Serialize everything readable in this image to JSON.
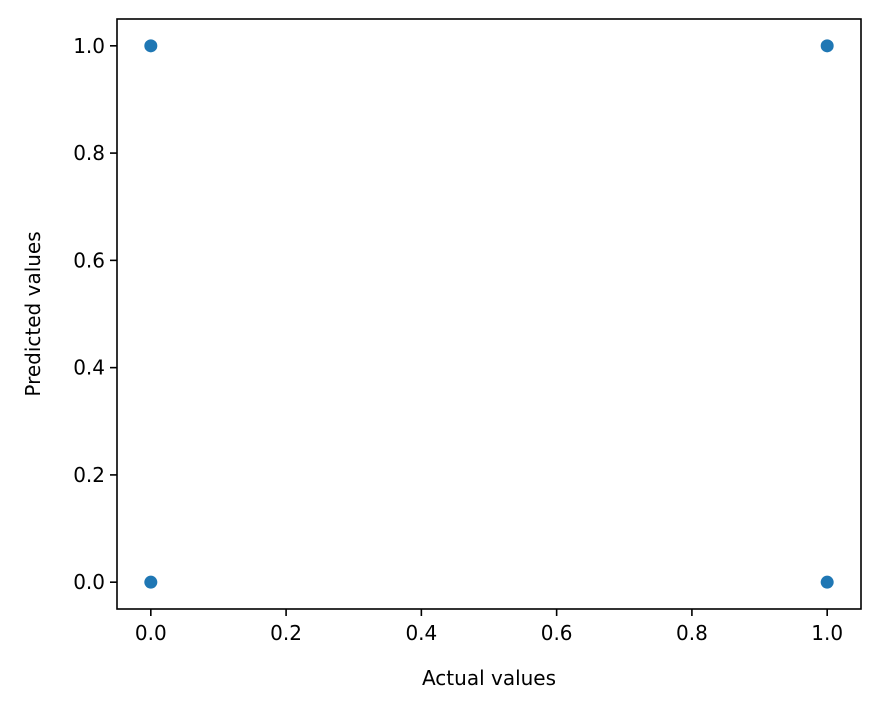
{
  "chart_data": {
    "type": "scatter",
    "title": "",
    "xlabel": "Actual values",
    "ylabel": "Predicted values",
    "xlim": [
      -0.05,
      1.05
    ],
    "ylim": [
      -0.05,
      1.05
    ],
    "xticks": [
      0.0,
      0.2,
      0.4,
      0.6,
      0.8,
      1.0
    ],
    "yticks": [
      0.0,
      0.2,
      0.4,
      0.6,
      0.8,
      1.0
    ],
    "xtick_labels": [
      "0.0",
      "0.2",
      "0.4",
      "0.6",
      "0.8",
      "1.0"
    ],
    "ytick_labels": [
      "0.0",
      "0.2",
      "0.4",
      "0.6",
      "0.8",
      "1.0"
    ],
    "grid": false,
    "legend": "none",
    "series": [
      {
        "color": "#1f77b4",
        "points": [
          {
            "x": 0,
            "y": 1
          },
          {
            "x": 1,
            "y": 1
          },
          {
            "x": 0,
            "y": 0
          },
          {
            "x": 1,
            "y": 0
          }
        ]
      }
    ]
  }
}
